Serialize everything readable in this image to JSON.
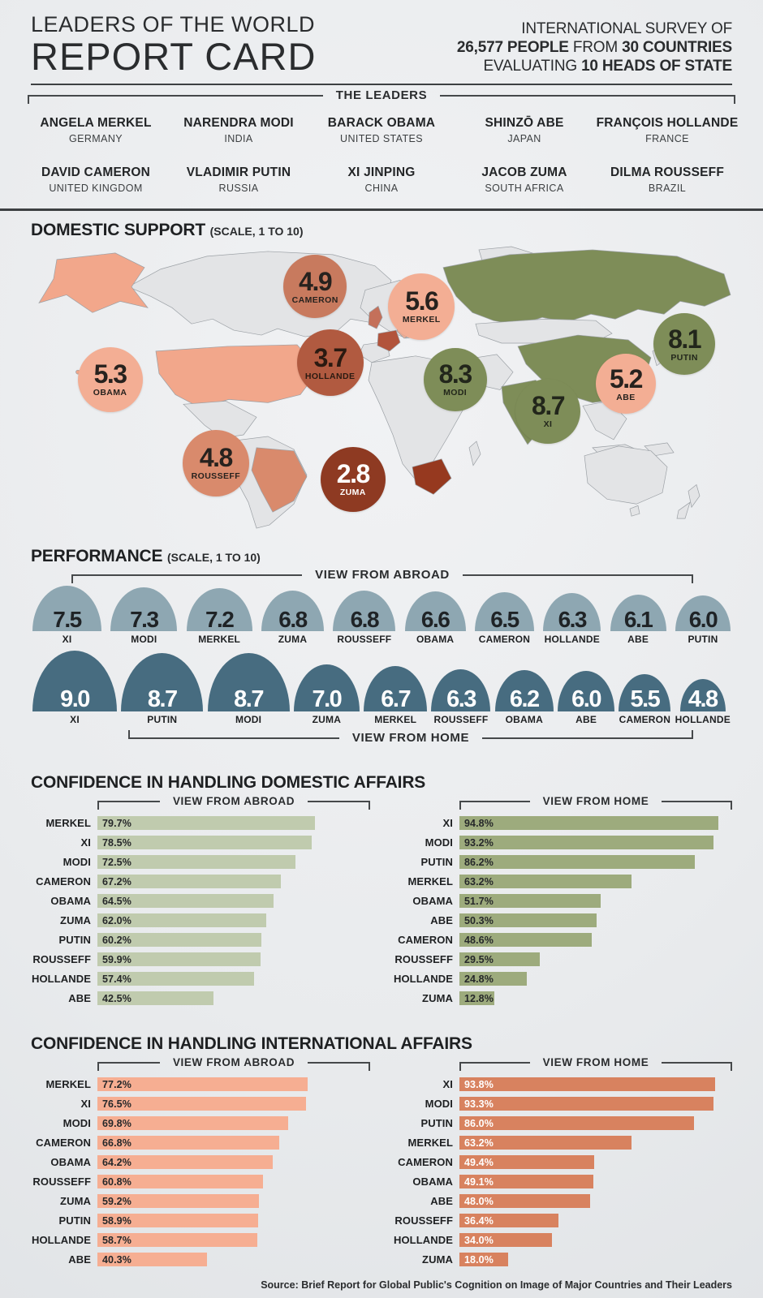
{
  "header": {
    "title_line1": "LEADERS OF THE WORLD",
    "title_line2": "REPORT CARD",
    "survey": {
      "line1": "INTERNATIONAL SURVEY OF",
      "line2_bold1": "26,577 PEOPLE",
      "line2_mid": " FROM ",
      "line2_bold2": "30 COUNTRIES",
      "line3_pre": "EVALUATING ",
      "line3_bold": "10 HEADS OF STATE"
    }
  },
  "leaders": {
    "bracket_label": "THE LEADERS",
    "items": [
      {
        "name": "ANGELA MERKEL",
        "country": "GERMANY"
      },
      {
        "name": "NARENDRA MODI",
        "country": "INDIA"
      },
      {
        "name": "BARACK OBAMA",
        "country": "UNITED STATES"
      },
      {
        "name": "SHINZŌ ABE",
        "country": "JAPAN"
      },
      {
        "name": "FRANÇOIS HOLLANDE",
        "country": "FRANCE"
      },
      {
        "name": "DAVID CAMERON",
        "country": "UNITED KINGDOM"
      },
      {
        "name": "VLADIMIR PUTIN",
        "country": "RUSSIA"
      },
      {
        "name": "XI JINPING",
        "country": "CHINA"
      },
      {
        "name": "JACOB ZUMA",
        "country": "SOUTH AFRICA"
      },
      {
        "name": "DILMA ROUSSEFF",
        "country": "BRAZIL"
      }
    ]
  },
  "sections": {
    "domestic_support": {
      "title": "DOMESTIC SUPPORT",
      "scale_note": "(SCALE, 1 TO 10)"
    },
    "performance": {
      "title": "PERFORMANCE",
      "scale_note": "(SCALE, 1 TO 10)",
      "abroad_label": "VIEW FROM ABROAD",
      "home_label": "VIEW FROM HOME"
    },
    "domestic_affairs": {
      "title": "CONFIDENCE IN HANDLING DOMESTIC AFFAIRS",
      "abroad_label": "VIEW FROM ABROAD",
      "home_label": "VIEW FROM HOME"
    },
    "international_affairs": {
      "title": "CONFIDENCE IN HANDLING INTERNATIONAL AFFAIRS",
      "abroad_label": "VIEW FROM ABROAD",
      "home_label": "VIEW FROM HOME"
    }
  },
  "source": "Source: Brief Report for Global Public's Cognition on Image of Major Countries and Their Leaders",
  "chart_data": [
    {
      "type": "map_bubbles",
      "title": "DOMESTIC SUPPORT",
      "scale": [
        1,
        10
      ],
      "points": [
        {
          "leader": "CAMERON",
          "value": 4.9,
          "x_pct": 40.7,
          "y_pct": 14.4,
          "size": 78,
          "color": "#c87a5e",
          "text_color": "#27221e"
        },
        {
          "leader": "MERKEL",
          "value": 5.6,
          "x_pct": 55.6,
          "y_pct": 21.4,
          "size": 82,
          "color": "#f3ae94",
          "text_color": "#27221e"
        },
        {
          "leader": "PUTIN",
          "value": 8.1,
          "x_pct": 92.4,
          "y_pct": 34.6,
          "size": 76,
          "color": "#7e8d58",
          "text_color": "#22261b"
        },
        {
          "leader": "HOLLANDE",
          "value": 3.7,
          "x_pct": 42.8,
          "y_pct": 41.1,
          "size": 82,
          "color": "#b15a40",
          "text_color": "#2b1a11"
        },
        {
          "leader": "MODI",
          "value": 8.3,
          "x_pct": 60.3,
          "y_pct": 47.0,
          "size": 78,
          "color": "#7e8d58",
          "text_color": "#22261b"
        },
        {
          "leader": "ABE",
          "value": 5.2,
          "x_pct": 84.2,
          "y_pct": 48.5,
          "size": 74,
          "color": "#f3ae94",
          "text_color": "#27221e"
        },
        {
          "leader": "XI",
          "value": 8.7,
          "x_pct": 73.3,
          "y_pct": 58.0,
          "size": 80,
          "color": "#7e8d58",
          "text_color": "#22261b"
        },
        {
          "leader": "OBAMA",
          "value": 5.3,
          "x_pct": 12.0,
          "y_pct": 47.0,
          "size": 80,
          "color": "#f3ae94",
          "text_color": "#27221e"
        },
        {
          "leader": "ROUSSEFF",
          "value": 4.8,
          "x_pct": 26.8,
          "y_pct": 76.3,
          "size": 82,
          "color": "#d98a6c",
          "text_color": "#27221e"
        },
        {
          "leader": "ZUMA",
          "value": 2.8,
          "x_pct": 46.0,
          "y_pct": 82.0,
          "size": 80,
          "color": "#8e3a22",
          "text_color": "#ffffff"
        }
      ],
      "country_fills": {
        "russia": "#7e8d58",
        "china": "#7e8d58",
        "india": "#7e8d58",
        "usa": "#f2a78b",
        "japan": "#f2a78b",
        "germany": "#f3b59d",
        "brazil": "#d98a6c",
        "uk": "#c4705a",
        "france": "#b2543c",
        "south-africa": "#96391f"
      }
    },
    {
      "type": "dome",
      "name": "performance-view-from-abroad",
      "scale": [
        1,
        10
      ],
      "categories": [
        "XI",
        "MODI",
        "MERKEL",
        "ZUMA",
        "ROUSSEFF",
        "OBAMA",
        "CAMERON",
        "HOLLANDE",
        "ABE",
        "PUTIN"
      ],
      "values": [
        7.5,
        7.3,
        7.2,
        6.8,
        6.8,
        6.6,
        6.5,
        6.3,
        6.1,
        6.0
      ],
      "dome_color": "#8ea7b2",
      "value_text_color": "#1f2326"
    },
    {
      "type": "dome",
      "name": "performance-view-from-home",
      "scale": [
        1,
        10
      ],
      "categories": [
        "XI",
        "PUTIN",
        "MODI",
        "ZUMA",
        "MERKEL",
        "ROUSSEFF",
        "OBAMA",
        "ABE",
        "CAMERON",
        "HOLLANDE"
      ],
      "values": [
        9.0,
        8.7,
        8.7,
        7.0,
        6.7,
        6.3,
        6.2,
        6.0,
        5.5,
        4.8
      ],
      "dome_color": "#476c80",
      "value_text_color": "#ffffff"
    },
    {
      "type": "bar",
      "name": "domestic-affairs-view-from-abroad",
      "unit": "%",
      "xlim": [
        0,
        100
      ],
      "categories": [
        "MERKEL",
        "XI",
        "MODI",
        "CAMERON",
        "OBAMA",
        "ZUMA",
        "PUTIN",
        "ROUSSEFF",
        "HOLLANDE",
        "ABE"
      ],
      "values": [
        79.7,
        78.5,
        72.5,
        67.2,
        64.5,
        62.0,
        60.2,
        59.9,
        57.4,
        42.5
      ],
      "bar_color": "#c0cbae",
      "value_text_color": "#26282a"
    },
    {
      "type": "bar",
      "name": "domestic-affairs-view-from-home",
      "unit": "%",
      "xlim": [
        0,
        100
      ],
      "categories": [
        "XI",
        "MODI",
        "PUTIN",
        "MERKEL",
        "OBAMA",
        "ABE",
        "CAMERON",
        "ROUSSEFF",
        "HOLLANDE",
        "ZUMA"
      ],
      "values": [
        94.8,
        93.2,
        86.2,
        63.2,
        51.7,
        50.3,
        48.6,
        29.5,
        24.8,
        12.8
      ],
      "bar_color": "#9dab7d",
      "value_text_color": "#26282a"
    },
    {
      "type": "bar",
      "name": "international-affairs-view-from-abroad",
      "unit": "%",
      "xlim": [
        0,
        100
      ],
      "categories": [
        "MERKEL",
        "XI",
        "MODI",
        "CAMERON",
        "OBAMA",
        "ROUSSEFF",
        "ZUMA",
        "PUTIN",
        "HOLLANDE",
        "ABE"
      ],
      "values": [
        77.2,
        76.5,
        69.8,
        66.8,
        64.2,
        60.8,
        59.2,
        58.9,
        58.7,
        40.3
      ],
      "bar_color": "#f6ae92",
      "value_text_color": "#26282a"
    },
    {
      "type": "bar",
      "name": "international-affairs-view-from-home",
      "unit": "%",
      "xlim": [
        0,
        100
      ],
      "categories": [
        "XI",
        "MODI",
        "PUTIN",
        "MERKEL",
        "CAMERON",
        "OBAMA",
        "ABE",
        "ROUSSEFF",
        "HOLLANDE",
        "ZUMA"
      ],
      "values": [
        93.8,
        93.3,
        86.0,
        63.2,
        49.4,
        49.1,
        48.0,
        36.4,
        34.0,
        18.0
      ],
      "bar_color": "#d8825f",
      "value_text_color": "#ffffff"
    }
  ]
}
